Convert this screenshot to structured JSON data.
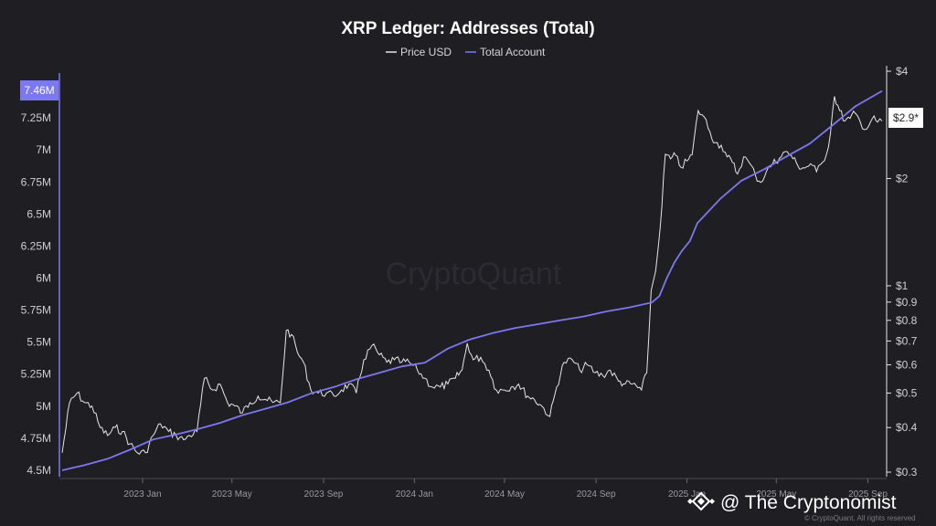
{
  "chart_data": {
    "type": "line",
    "title": "XRP Ledger: Addresses (Total)",
    "legend": {
      "placement": "top-center",
      "items": [
        "Price USD",
        "Total Account"
      ]
    },
    "colors": {
      "price": "#e6e6ea",
      "accounts": "#7b78f0",
      "left_badge": "#7b78f0",
      "background": "#1f1e22"
    },
    "grid": false,
    "y_left": {
      "label": "",
      "ticks": [
        "4.5M",
        "4.75M",
        "5M",
        "5.25M",
        "5.5M",
        "5.75M",
        "6M",
        "6.25M",
        "6.5M",
        "6.75M",
        "7M",
        "7.25M"
      ],
      "tick_values": [
        4.5,
        4.75,
        5.0,
        5.25,
        5.5,
        5.75,
        6.0,
        6.25,
        6.5,
        6.75,
        7.0,
        7.25
      ],
      "ylim": [
        4.45,
        7.6
      ],
      "current_label": "7.46M",
      "current_value": 7.46
    },
    "y_right": {
      "label": "",
      "scale": "log",
      "ticks": [
        "$0.3",
        "$0.4",
        "$0.5",
        "$0.6",
        "$0.7",
        "$0.8",
        "$0.9",
        "$1",
        "$2",
        "$4"
      ],
      "tick_values": [
        0.3,
        0.4,
        0.5,
        0.6,
        0.7,
        0.8,
        0.9,
        1.0,
        2.0,
        4.0
      ],
      "ylim": [
        0.3,
        4.0
      ],
      "current_label": "$2.9*",
      "current_value": 2.9
    },
    "x_axis": {
      "ticks": [
        "2023 Jan",
        "2023 May",
        "2023 Sep",
        "2024 Jan",
        "2024 May",
        "2024 Sep",
        "2025 Jan",
        "2025 May",
        "2025 Sep"
      ],
      "tick_dates": [
        "2023-01",
        "2023-05",
        "2023-09",
        "2024-01",
        "2024-05",
        "2024-09",
        "2025-01",
        "2025-05",
        "2025-09"
      ],
      "xlim": [
        "2022-09-15",
        "2025-09-20"
      ]
    },
    "series": [
      {
        "name": "Total Account",
        "axis": "left",
        "x": [
          "2022-09-15",
          "2022-10-15",
          "2022-11-15",
          "2022-12-15",
          "2023-01-15",
          "2023-02-15",
          "2023-03-15",
          "2023-04-15",
          "2023-05-15",
          "2023-06-15",
          "2023-07-15",
          "2023-08-15",
          "2023-09-15",
          "2023-10-15",
          "2023-11-15",
          "2023-12-15",
          "2024-01-15",
          "2024-02-15",
          "2024-03-15",
          "2024-04-15",
          "2024-05-15",
          "2024-06-15",
          "2024-07-15",
          "2024-08-15",
          "2024-09-15",
          "2024-10-15",
          "2024-11-15",
          "2024-11-25",
          "2024-12-05",
          "2024-12-15",
          "2024-12-25",
          "2025-01-05",
          "2025-01-15",
          "2025-02-15",
          "2025-03-15",
          "2025-04-15",
          "2025-05-15",
          "2025-06-15",
          "2025-07-15",
          "2025-08-15",
          "2025-09-20"
        ],
        "y": [
          4.5,
          4.54,
          4.59,
          4.66,
          4.74,
          4.78,
          4.82,
          4.87,
          4.93,
          4.98,
          5.03,
          5.1,
          5.15,
          5.21,
          5.26,
          5.31,
          5.34,
          5.45,
          5.52,
          5.57,
          5.61,
          5.64,
          5.67,
          5.7,
          5.74,
          5.77,
          5.81,
          5.86,
          6.0,
          6.12,
          6.21,
          6.29,
          6.43,
          6.62,
          6.76,
          6.85,
          6.95,
          7.05,
          7.19,
          7.34,
          7.46
        ]
      },
      {
        "name": "Price USD",
        "axis": "right",
        "x": [
          "2022-09-15",
          "2022-09-25",
          "2022-10-05",
          "2022-10-15",
          "2022-10-25",
          "2022-11-05",
          "2022-11-15",
          "2022-11-25",
          "2022-12-05",
          "2022-12-15",
          "2022-12-25",
          "2023-01-05",
          "2023-01-15",
          "2023-01-25",
          "2023-02-05",
          "2023-02-15",
          "2023-02-25",
          "2023-03-05",
          "2023-03-15",
          "2023-03-25",
          "2023-04-05",
          "2023-04-15",
          "2023-04-25",
          "2023-05-05",
          "2023-05-15",
          "2023-05-25",
          "2023-06-05",
          "2023-06-15",
          "2023-06-25",
          "2023-07-05",
          "2023-07-13",
          "2023-07-20",
          "2023-07-28",
          "2023-08-05",
          "2023-08-15",
          "2023-08-25",
          "2023-09-05",
          "2023-09-15",
          "2023-09-25",
          "2023-10-05",
          "2023-10-15",
          "2023-10-25",
          "2023-11-05",
          "2023-11-15",
          "2023-11-25",
          "2023-12-05",
          "2023-12-15",
          "2023-12-25",
          "2024-01-05",
          "2024-01-15",
          "2024-01-25",
          "2024-02-05",
          "2024-02-15",
          "2024-02-25",
          "2024-03-05",
          "2024-03-12",
          "2024-03-20",
          "2024-03-30",
          "2024-04-10",
          "2024-04-20",
          "2024-05-01",
          "2024-05-10",
          "2024-05-20",
          "2024-06-01",
          "2024-06-10",
          "2024-06-20",
          "2024-07-01",
          "2024-07-10",
          "2024-07-20",
          "2024-07-31",
          "2024-08-10",
          "2024-08-20",
          "2024-08-31",
          "2024-09-10",
          "2024-09-20",
          "2024-10-01",
          "2024-10-10",
          "2024-10-20",
          "2024-11-01",
          "2024-11-08",
          "2024-11-14",
          "2024-11-20",
          "2024-11-26",
          "2024-12-03",
          "2024-12-10",
          "2024-12-17",
          "2024-12-24",
          "2025-01-01",
          "2025-01-08",
          "2025-01-16",
          "2025-01-24",
          "2025-02-01",
          "2025-02-08",
          "2025-02-16",
          "2025-02-24",
          "2025-03-03",
          "2025-03-10",
          "2025-03-18",
          "2025-03-26",
          "2025-04-03",
          "2025-04-10",
          "2025-04-18",
          "2025-04-26",
          "2025-05-05",
          "2025-05-13",
          "2025-05-21",
          "2025-05-30",
          "2025-06-08",
          "2025-06-16",
          "2025-06-24",
          "2025-07-02",
          "2025-07-10",
          "2025-07-18",
          "2025-07-25",
          "2025-08-01",
          "2025-08-08",
          "2025-08-15",
          "2025-08-22",
          "2025-08-30",
          "2025-09-07",
          "2025-09-14",
          "2025-09-20"
        ],
        "y": [
          0.34,
          0.47,
          0.5,
          0.47,
          0.46,
          0.4,
          0.38,
          0.4,
          0.39,
          0.36,
          0.34,
          0.34,
          0.38,
          0.41,
          0.39,
          0.38,
          0.37,
          0.38,
          0.39,
          0.55,
          0.51,
          0.53,
          0.47,
          0.46,
          0.44,
          0.47,
          0.49,
          0.48,
          0.47,
          0.47,
          0.75,
          0.73,
          0.65,
          0.61,
          0.51,
          0.5,
          0.5,
          0.49,
          0.51,
          0.53,
          0.5,
          0.62,
          0.68,
          0.64,
          0.61,
          0.62,
          0.61,
          0.61,
          0.58,
          0.55,
          0.52,
          0.52,
          0.53,
          0.55,
          0.58,
          0.69,
          0.62,
          0.63,
          0.58,
          0.51,
          0.51,
          0.52,
          0.53,
          0.49,
          0.48,
          0.46,
          0.43,
          0.52,
          0.61,
          0.62,
          0.58,
          0.6,
          0.57,
          0.56,
          0.58,
          0.54,
          0.53,
          0.53,
          0.51,
          0.57,
          0.97,
          1.1,
          1.45,
          2.34,
          2.27,
          2.32,
          2.15,
          2.24,
          2.33,
          3.1,
          2.98,
          2.7,
          2.52,
          2.48,
          2.3,
          2.22,
          2.06,
          2.3,
          2.21,
          2.04,
          1.95,
          2.1,
          2.2,
          2.28,
          2.38,
          2.32,
          2.17,
          2.14,
          2.2,
          2.09,
          2.22,
          2.45,
          3.4,
          3.1,
          2.9,
          2.95,
          3.05,
          2.87,
          2.75,
          2.95,
          2.88,
          2.9
        ]
      }
    ]
  },
  "watermark": "CryptoQuant",
  "credit": "@ The Cryptonomist",
  "rights": "© CryptoQuant. All rights reserved"
}
